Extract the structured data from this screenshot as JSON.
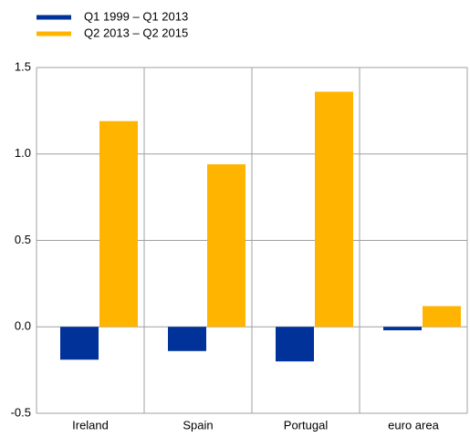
{
  "chart_data": {
    "type": "bar",
    "categories": [
      "Ireland",
      "Spain",
      "Portugal",
      "euro area"
    ],
    "series": [
      {
        "name": "Q1 1999 – Q1 2013",
        "color": "#003299",
        "values": [
          -0.19,
          -0.14,
          -0.2,
          -0.02
        ]
      },
      {
        "name": "Q2 2013 – Q2 2015",
        "color": "#ffb400",
        "values": [
          1.19,
          0.94,
          1.36,
          0.12
        ]
      }
    ],
    "ylim": [
      -0.5,
      1.5
    ],
    "yticks": [
      -0.5,
      {
        "value": 0,
        "label": "0.0"
      },
      0.5,
      {
        "value": 1,
        "label": "1.0"
      },
      1.5
    ],
    "grid": true,
    "legend": "top-left"
  }
}
